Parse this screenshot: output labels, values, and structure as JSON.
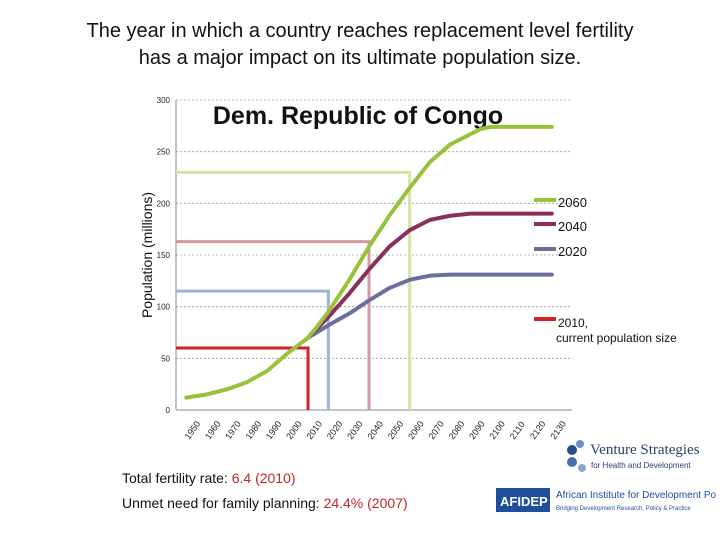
{
  "slide": {
    "title_line1": "The year in which a country reaches replacement level fertility",
    "title_line2": "has a major impact on its ultimate population size."
  },
  "chart_data": {
    "type": "line",
    "title": "Dem. Republic of Congo",
    "ylabel": "Population (millions)",
    "xlabel": "",
    "ylim": [
      0,
      300
    ],
    "yticks": [
      0,
      50,
      100,
      150,
      200,
      250,
      300
    ],
    "grid": true,
    "x": [
      1950,
      1960,
      1970,
      1980,
      1990,
      2000,
      2010,
      2020,
      2030,
      2040,
      2050,
      2060,
      2070,
      2080,
      2090,
      2100,
      2110,
      2120,
      2130
    ],
    "xlim": [
      1945,
      2135
    ],
    "series": [
      {
        "name": "2060",
        "color": "#99c23c",
        "points": [
          [
            1950,
            12
          ],
          [
            1960,
            15
          ],
          [
            1970,
            20
          ],
          [
            1980,
            27
          ],
          [
            1990,
            38
          ],
          [
            2000,
            55
          ],
          [
            2010,
            70
          ],
          [
            2015,
            82
          ],
          [
            2020,
            95
          ],
          [
            2030,
            125
          ],
          [
            2040,
            158
          ],
          [
            2050,
            188
          ],
          [
            2060,
            215
          ],
          [
            2070,
            240
          ],
          [
            2080,
            257
          ],
          [
            2090,
            267
          ],
          [
            2095,
            272
          ],
          [
            2100,
            274
          ],
          [
            2110,
            274
          ],
          [
            2120,
            274
          ],
          [
            2130,
            274
          ]
        ]
      },
      {
        "name": "2040",
        "color": "#8b2f5a",
        "points": [
          [
            2010,
            70
          ],
          [
            2020,
            90
          ],
          [
            2030,
            112
          ],
          [
            2040,
            136
          ],
          [
            2050,
            158
          ],
          [
            2060,
            174
          ],
          [
            2070,
            184
          ],
          [
            2080,
            188
          ],
          [
            2090,
            190
          ],
          [
            2100,
            190
          ],
          [
            2110,
            190
          ],
          [
            2120,
            190
          ],
          [
            2130,
            190
          ]
        ]
      },
      {
        "name": "2020",
        "color": "#6a6f9c",
        "points": [
          [
            2010,
            70
          ],
          [
            2020,
            82
          ],
          [
            2030,
            93
          ],
          [
            2040,
            106
          ],
          [
            2050,
            118
          ],
          [
            2060,
            126
          ],
          [
            2070,
            130
          ],
          [
            2080,
            131
          ],
          [
            2090,
            131
          ],
          [
            2100,
            131
          ],
          [
            2110,
            131
          ],
          [
            2120,
            131
          ],
          [
            2130,
            131
          ]
        ]
      }
    ],
    "markers": [
      {
        "series": "2060",
        "year": 2060,
        "level": 230,
        "color": "#d7e2a3"
      },
      {
        "series": "2040",
        "year": 2040,
        "level": 163,
        "color": "#d29a9f"
      },
      {
        "series": "2020",
        "year": 2020,
        "level": 115,
        "color": "#9fb3d6"
      },
      {
        "series": "2010, current population size",
        "year": 2010,
        "level": 60,
        "color": "#d42027"
      }
    ],
    "legend": [
      {
        "label": "2060",
        "color": "#99c23c"
      },
      {
        "label": "2040",
        "color": "#8b2f5a"
      },
      {
        "label": "2020",
        "color": "#6a6f9c"
      },
      {
        "label": "2010, current population size",
        "color": "#d42027"
      }
    ],
    "legend_position": "right"
  },
  "footer": {
    "tfr_label": "Total fertility rate:",
    "tfr_value": "6.4 (2010)",
    "unmet_label": "Unmet need for family planning:",
    "unmet_value": "24.4% (2007)"
  },
  "logos": {
    "venture_name": "Venture Strategies",
    "venture_tagline": "for Health and Development",
    "afidep_abbr": "AFIDEP",
    "afidep_name": "African Institute for Development Policy",
    "afidep_tagline": "Bridging Development Research, Policy & Practice"
  }
}
